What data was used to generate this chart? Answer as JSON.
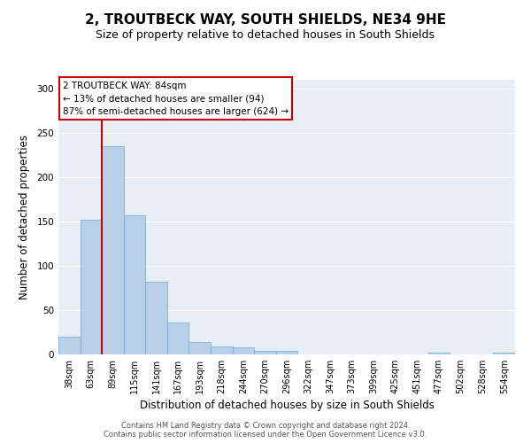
{
  "title": "2, TROUTBECK WAY, SOUTH SHIELDS, NE34 9HE",
  "subtitle": "Size of property relative to detached houses in South Shields",
  "xlabel": "Distribution of detached houses by size in South Shields",
  "ylabel": "Number of detached properties",
  "bar_labels": [
    "38sqm",
    "63sqm",
    "89sqm",
    "115sqm",
    "141sqm",
    "167sqm",
    "193sqm",
    "218sqm",
    "244sqm",
    "270sqm",
    "296sqm",
    "322sqm",
    "347sqm",
    "373sqm",
    "399sqm",
    "425sqm",
    "451sqm",
    "477sqm",
    "502sqm",
    "528sqm",
    "554sqm"
  ],
  "bar_values": [
    20,
    152,
    235,
    157,
    82,
    36,
    14,
    9,
    8,
    4,
    4,
    0,
    0,
    0,
    0,
    0,
    0,
    2,
    0,
    0,
    2
  ],
  "bar_color": "#b8d0e8",
  "bar_edge_color": "#6aaad4",
  "vline_color": "#cc0000",
  "ylim": [
    0,
    310
  ],
  "yticks": [
    0,
    50,
    100,
    150,
    200,
    250,
    300
  ],
  "annotation_title": "2 TROUTBECK WAY: 84sqm",
  "annotation_line1": "← 13% of detached houses are smaller (94)",
  "annotation_line2": "87% of semi-detached houses are larger (624) →",
  "annotation_box_color": "#ffffff",
  "annotation_box_edge": "#cc0000",
  "background_color": "#ffffff",
  "plot_bg_color": "#e8eef5",
  "grid_color": "#ffffff",
  "footer_line1": "Contains HM Land Registry data © Crown copyright and database right 2024.",
  "footer_line2": "Contains public sector information licensed under the Open Government Licence v3.0.",
  "title_fontsize": 11,
  "subtitle_fontsize": 9,
  "xlabel_fontsize": 8.5,
  "ylabel_fontsize": 8.5,
  "tick_fontsize": 7,
  "annot_fontsize": 7.5,
  "footer_fontsize": 6
}
